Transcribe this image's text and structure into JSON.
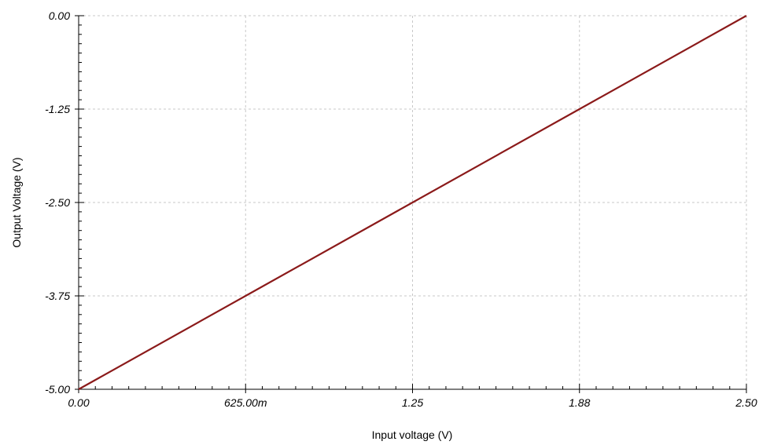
{
  "chart_data": {
    "type": "line",
    "title": "",
    "xlabel": "Input voltage (V)",
    "ylabel": "Output Voltage (V)",
    "xlim": [
      0,
      2.5
    ],
    "ylim": [
      -5,
      0
    ],
    "x_ticks": [
      0,
      0.625,
      1.25,
      1.875,
      2.5
    ],
    "x_tick_labels": [
      "0.00",
      "625.00m",
      "1.25",
      "1.88",
      "2.50"
    ],
    "y_ticks": [
      0,
      -1.25,
      -2.5,
      -3.75,
      -5
    ],
    "y_tick_labels": [
      "0.00",
      "-1.25",
      "-2.50",
      "-3.75",
      "-5.00"
    ],
    "grid": true,
    "series": [
      {
        "color": "#8b1a1a",
        "x": [
          0,
          0.625,
          1.25,
          1.875,
          2.5
        ],
        "y": [
          -5,
          -3.75,
          -2.5,
          -1.25,
          0
        ]
      }
    ]
  }
}
